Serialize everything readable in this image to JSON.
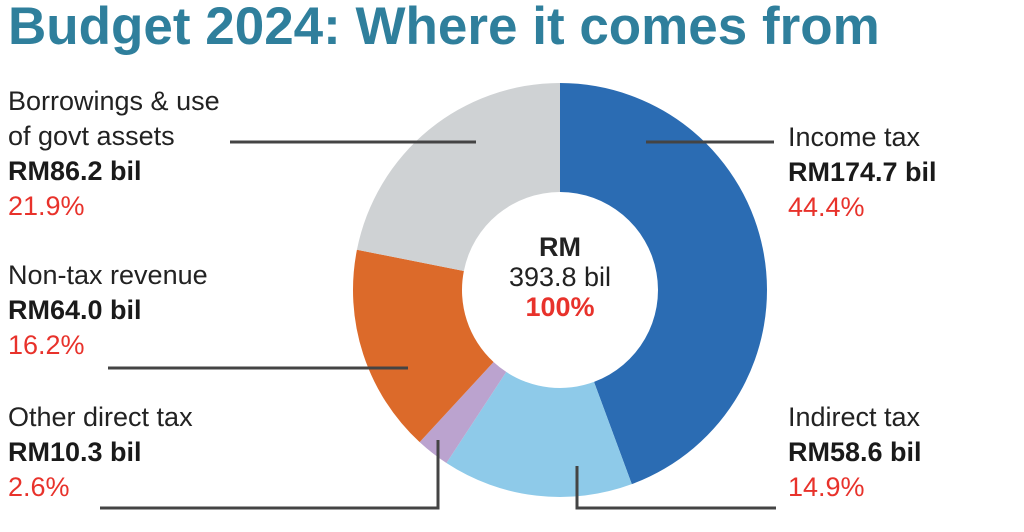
{
  "title": "Budget 2024: Where it comes from",
  "center": {
    "line1": "RM",
    "line2": "393.8 bil",
    "line3": "100%"
  },
  "chart_data": {
    "type": "pie",
    "donut": true,
    "title": "Budget 2024: Where it comes from",
    "total": {
      "label": "RM 393.8 bil",
      "percent": "100%"
    },
    "unit": "RM bil",
    "slices": [
      {
        "name": "Income tax",
        "value": 174.7,
        "value_label": "RM174.7 bil",
        "percent": 44.4,
        "percent_label": "44.4%",
        "color": "#2b6cb3"
      },
      {
        "name": "Indirect tax",
        "value": 58.6,
        "value_label": "RM58.6 bil",
        "percent": 14.9,
        "percent_label": "14.9%",
        "color": "#8ecae9"
      },
      {
        "name": "Other direct tax",
        "value": 10.3,
        "value_label": "RM10.3 bil",
        "percent": 2.6,
        "percent_label": "2.6%",
        "color": "#bba3cf"
      },
      {
        "name": "Non-tax revenue",
        "value": 64.0,
        "value_label": "RM64.0 bil",
        "percent": 16.2,
        "percent_label": "16.2%",
        "color": "#dc6a2a"
      },
      {
        "name": "Borrowings & use of govt assets",
        "name_lines": [
          "Borrowings & use",
          "of govt assets"
        ],
        "value": 86.2,
        "value_label": "RM86.2 bil",
        "percent": 21.9,
        "percent_label": "21.9%",
        "color": "#cfd2d4"
      }
    ],
    "label_color": "#e8322b",
    "title_color": "#2f7f9c"
  }
}
